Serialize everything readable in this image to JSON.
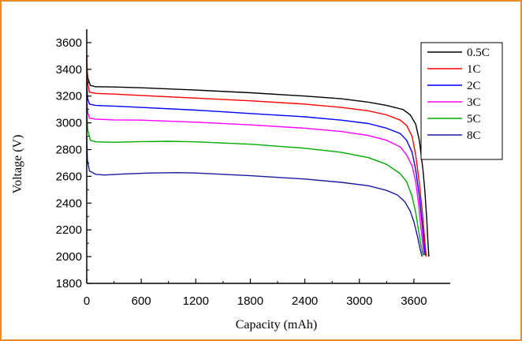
{
  "chart_data": {
    "type": "line",
    "title": "",
    "xlabel": "Capacity (mAh)",
    "ylabel": "Voltage (V)",
    "xlim": [
      0,
      4000
    ],
    "ylim": [
      1800,
      3700
    ],
    "xticks": [
      0,
      600,
      1200,
      1800,
      2400,
      3000,
      3600
    ],
    "yticks": [
      1800,
      2000,
      2200,
      2400,
      2600,
      2800,
      3000,
      3200,
      3400,
      3600
    ],
    "grid": false,
    "legend_position": "top-right",
    "series": [
      {
        "name": "0.5C",
        "color": "#000000",
        "x": [
          0,
          15,
          40,
          100,
          300,
          600,
          1200,
          1800,
          2400,
          2800,
          3100,
          3300,
          3480,
          3560,
          3620,
          3660,
          3700,
          3720,
          3740,
          3755,
          3765
        ],
        "y": [
          3420,
          3330,
          3280,
          3270,
          3268,
          3262,
          3245,
          3225,
          3200,
          3180,
          3155,
          3130,
          3100,
          3060,
          2990,
          2870,
          2650,
          2500,
          2300,
          2100,
          2000
        ]
      },
      {
        "name": "1C",
        "color": "#ff0000",
        "x": [
          0,
          10,
          30,
          100,
          300,
          600,
          1200,
          1800,
          2400,
          2800,
          3100,
          3300,
          3450,
          3520,
          3580,
          3620,
          3660,
          3690,
          3710,
          3725,
          3735
        ],
        "y": [
          3500,
          3300,
          3230,
          3220,
          3215,
          3205,
          3185,
          3165,
          3140,
          3115,
          3090,
          3060,
          3020,
          2980,
          2900,
          2760,
          2550,
          2350,
          2200,
          2080,
          2000
        ]
      },
      {
        "name": "2C",
        "color": "#0000ff",
        "x": [
          0,
          10,
          30,
          100,
          300,
          600,
          1200,
          1800,
          2400,
          2800,
          3100,
          3300,
          3450,
          3520,
          3580,
          3620,
          3660,
          3690,
          3710,
          3725
        ],
        "y": [
          3300,
          3180,
          3140,
          3130,
          3125,
          3115,
          3095,
          3070,
          3045,
          3020,
          2995,
          2960,
          2920,
          2870,
          2780,
          2650,
          2450,
          2250,
          2100,
          2010
        ]
      },
      {
        "name": "3C",
        "color": "#ff00ff",
        "x": [
          0,
          10,
          30,
          100,
          300,
          600,
          1200,
          1800,
          2400,
          2800,
          3100,
          3300,
          3450,
          3520,
          3580,
          3620,
          3650,
          3680,
          3700,
          3712
        ],
        "y": [
          3200,
          3080,
          3035,
          3028,
          3022,
          3020,
          3005,
          2985,
          2960,
          2935,
          2905,
          2870,
          2820,
          2760,
          2680,
          2560,
          2400,
          2200,
          2080,
          2010
        ]
      },
      {
        "name": "5C",
        "color": "#00aa00",
        "x": [
          0,
          10,
          40,
          100,
          300,
          600,
          900,
          1200,
          1800,
          2400,
          2800,
          3100,
          3300,
          3450,
          3520,
          3580,
          3620,
          3650,
          3675,
          3695,
          3705
        ],
        "y": [
          3100,
          2950,
          2870,
          2858,
          2855,
          2860,
          2862,
          2858,
          2840,
          2810,
          2780,
          2740,
          2690,
          2620,
          2560,
          2450,
          2330,
          2200,
          2100,
          2030,
          2010
        ]
      },
      {
        "name": "8C",
        "color": "#1a1aa0",
        "x": [
          0,
          8,
          30,
          100,
          200,
          400,
          700,
          1000,
          1200,
          1800,
          2400,
          2800,
          3100,
          3300,
          3420,
          3500,
          3560,
          3600,
          3640,
          3670,
          3690
        ],
        "y": [
          2900,
          2720,
          2640,
          2615,
          2610,
          2618,
          2625,
          2628,
          2625,
          2605,
          2580,
          2555,
          2530,
          2495,
          2460,
          2410,
          2340,
          2260,
          2150,
          2050,
          2000
        ]
      }
    ]
  }
}
